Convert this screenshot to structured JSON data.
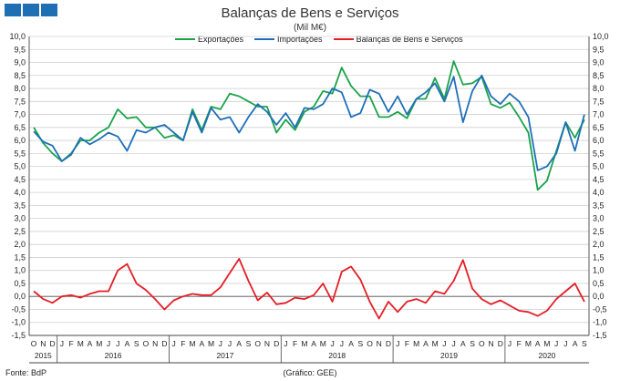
{
  "page": {
    "title": "Balanças de Bens e Serviços",
    "subtitle": "(Mil M€)",
    "source": "Fonte: BdP",
    "credit": "(Gráfico: GEE)"
  },
  "chart_data": {
    "type": "line",
    "title": "Balanças de Bens e Serviços",
    "subtitle": "(Mil M€)",
    "ylim": [
      -1.5,
      10.0
    ],
    "ytick_step": 0.5,
    "grid": true,
    "legend_position": "top",
    "month_labels": [
      "O",
      "N",
      "D",
      "J",
      "F",
      "M",
      "A",
      "M",
      "J",
      "J",
      "A",
      "S",
      "O",
      "N",
      "D",
      "J",
      "F",
      "M",
      "A",
      "M",
      "J",
      "J",
      "A",
      "S",
      "O",
      "N",
      "D",
      "J",
      "F",
      "M",
      "A",
      "M",
      "J",
      "J",
      "A",
      "S",
      "O",
      "N",
      "D",
      "J",
      "F",
      "M",
      "A",
      "M",
      "J",
      "J",
      "A",
      "S",
      "O",
      "N",
      "D",
      "J",
      "F",
      "M",
      "A",
      "M",
      "J",
      "J",
      "A",
      "S"
    ],
    "years": [
      {
        "label": "2015",
        "start": 0,
        "end": 3
      },
      {
        "label": "2016",
        "start": 3,
        "end": 15
      },
      {
        "label": "2017",
        "start": 15,
        "end": 27
      },
      {
        "label": "2018",
        "start": 27,
        "end": 39
      },
      {
        "label": "2019",
        "start": 39,
        "end": 51
      },
      {
        "label": "2020",
        "start": 51,
        "end": 60
      }
    ],
    "series": [
      {
        "name": "Exportações",
        "color": "#1aa34a",
        "values": [
          6.5,
          5.9,
          5.5,
          5.2,
          5.5,
          6.0,
          6.0,
          6.3,
          6.5,
          7.2,
          6.85,
          6.9,
          6.5,
          6.5,
          6.1,
          6.2,
          6.0,
          7.2,
          6.4,
          7.3,
          7.2,
          7.8,
          7.7,
          7.5,
          7.3,
          7.3,
          6.3,
          6.8,
          6.4,
          7.1,
          7.3,
          7.9,
          7.8,
          8.8,
          8.1,
          7.7,
          7.7,
          6.9,
          6.9,
          7.1,
          6.85,
          7.6,
          7.6,
          8.4,
          7.6,
          9.05,
          8.15,
          8.2,
          8.45,
          7.4,
          7.25,
          7.45,
          6.9,
          6.3,
          4.1,
          4.45,
          5.6,
          6.7,
          6.1,
          6.8
        ]
      },
      {
        "name": "Importações",
        "color": "#1e6fb8",
        "values": [
          6.35,
          5.95,
          5.8,
          5.2,
          5.45,
          6.1,
          5.85,
          6.05,
          6.3,
          6.15,
          5.6,
          6.4,
          6.3,
          6.5,
          6.6,
          6.3,
          6.0,
          7.1,
          6.3,
          7.25,
          6.8,
          6.9,
          6.3,
          6.9,
          7.4,
          7.1,
          6.6,
          7.05,
          6.5,
          7.25,
          7.2,
          7.4,
          8.0,
          7.85,
          6.9,
          7.05,
          7.95,
          7.8,
          7.1,
          7.7,
          7.0,
          7.6,
          7.85,
          8.2,
          7.5,
          8.45,
          6.7,
          7.9,
          8.5,
          7.7,
          7.4,
          7.8,
          7.5,
          6.9,
          4.85,
          5.0,
          5.5,
          6.7,
          5.6,
          7.0
        ]
      },
      {
        "name": "Balanças de Bens e Serviços",
        "color": "#e41e26",
        "values": [
          0.2,
          -0.1,
          -0.25,
          0.0,
          0.05,
          -0.05,
          0.1,
          0.2,
          0.2,
          1.0,
          1.25,
          0.5,
          0.25,
          -0.1,
          -0.5,
          -0.15,
          0.0,
          0.1,
          0.05,
          0.05,
          0.35,
          0.9,
          1.45,
          0.6,
          -0.15,
          0.15,
          -0.3,
          -0.25,
          -0.05,
          -0.1,
          0.05,
          0.5,
          -0.2,
          0.95,
          1.15,
          0.65,
          -0.2,
          -0.85,
          -0.2,
          -0.6,
          -0.2,
          -0.1,
          -0.25,
          0.2,
          0.1,
          0.6,
          1.4,
          0.3,
          -0.1,
          -0.3,
          -0.15,
          -0.35,
          -0.55,
          -0.6,
          -0.75,
          -0.55,
          -0.1,
          0.2,
          0.5,
          -0.2
        ]
      }
    ]
  }
}
